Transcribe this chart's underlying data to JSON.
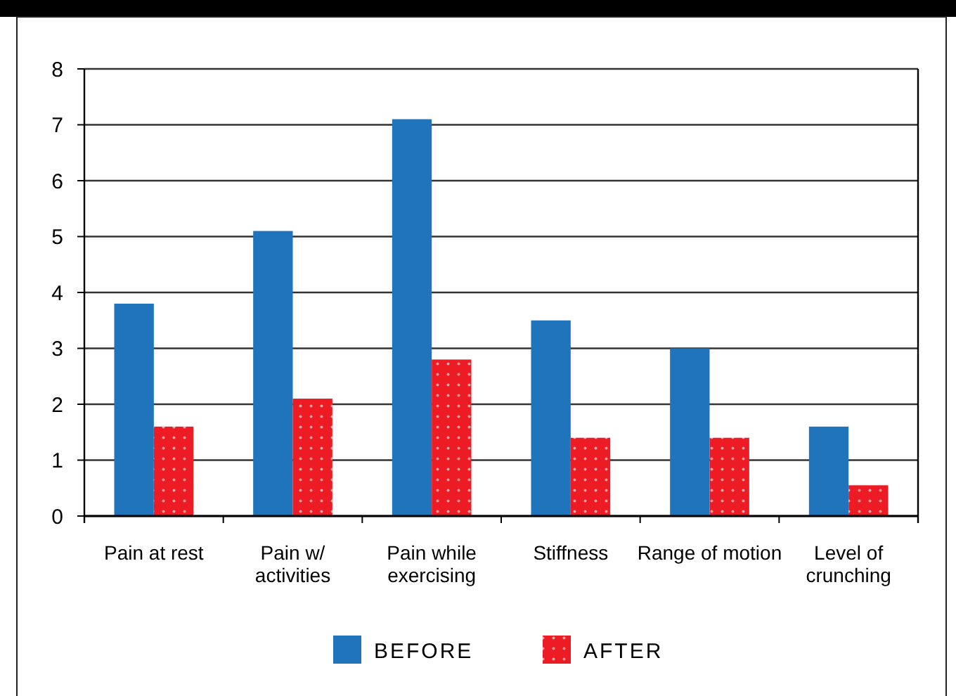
{
  "chart_data": {
    "type": "bar",
    "categories": [
      "Pain at rest",
      "Pain w/ activities",
      "Pain while exercising",
      "Stiffness",
      "Range of motion",
      "Level of crunching"
    ],
    "series": [
      {
        "name": "BEFORE",
        "color": "#1f74bc",
        "values": [
          3.8,
          5.1,
          7.1,
          3.5,
          3.0,
          1.6
        ]
      },
      {
        "name": "AFTER",
        "color": "#ed1c24",
        "values": [
          1.6,
          2.1,
          2.8,
          1.4,
          1.4,
          0.55
        ]
      }
    ],
    "ylim": [
      0,
      8
    ],
    "yticks": [
      0,
      1,
      2,
      3,
      4,
      5,
      6,
      7,
      8
    ],
    "grid": "y",
    "legend": "bottom"
  }
}
